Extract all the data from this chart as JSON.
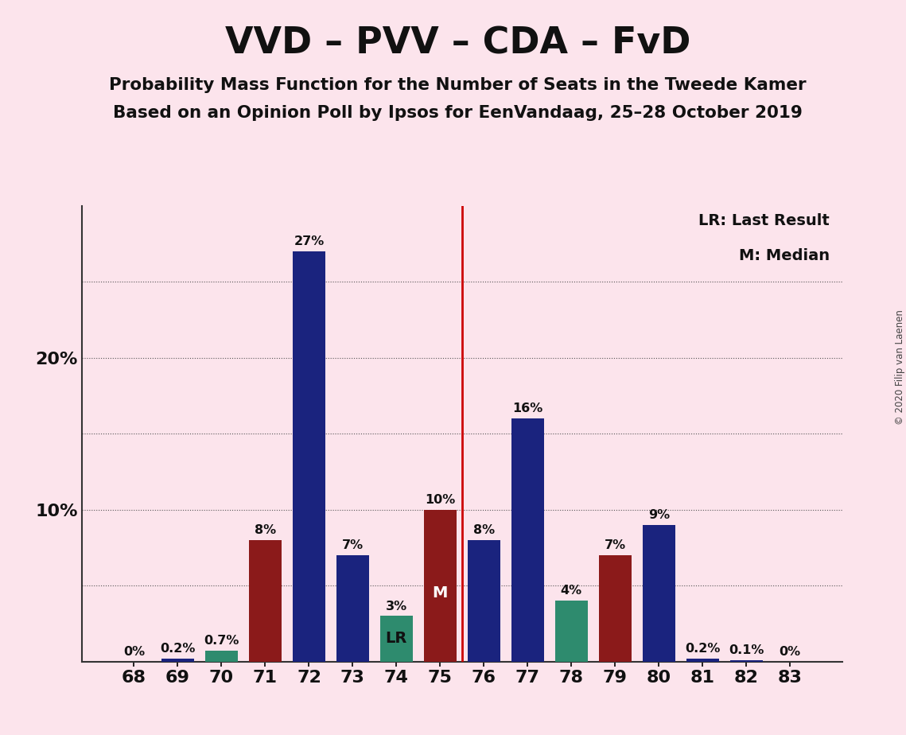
{
  "title": "VVD – PVV – CDA – FvD",
  "subtitle1": "Probability Mass Function for the Number of Seats in the Tweede Kamer",
  "subtitle2": "Based on an Opinion Poll by Ipsos for EenVandaag, 25–28 October 2019",
  "copyright": "© 2020 Filip van Laenen",
  "seats": [
    68,
    69,
    70,
    71,
    72,
    73,
    74,
    75,
    76,
    77,
    78,
    79,
    80,
    81,
    82,
    83
  ],
  "values": [
    0.0,
    0.2,
    0.7,
    8.0,
    27.0,
    7.0,
    3.0,
    10.0,
    8.0,
    16.0,
    4.0,
    7.0,
    9.0,
    0.2,
    0.1,
    0.0
  ],
  "labels": [
    "0%",
    "0.2%",
    "0.7%",
    "8%",
    "27%",
    "7%",
    "3%",
    "10%",
    "8%",
    "16%",
    "4%",
    "7%",
    "9%",
    "0.2%",
    "0.1%",
    "0%"
  ],
  "colors": [
    "#1a237e",
    "#1a237e",
    "#2e8b6e",
    "#8b1a1a",
    "#1a237e",
    "#1a237e",
    "#2e8b6e",
    "#8b1a1a",
    "#1a237e",
    "#1a237e",
    "#2e8b6e",
    "#8b1a1a",
    "#1a237e",
    "#1a237e",
    "#1a237e",
    "#1a237e"
  ],
  "lr_seat": 74,
  "median_seat": 75,
  "vline_x": 75.5,
  "background_color": "#fce4ec",
  "lr_label": "LR: Last Result",
  "m_label": "M: Median",
  "ylim_max": 30,
  "grid_lines": [
    5,
    10,
    15,
    20,
    25
  ],
  "ytick_vals": [
    10,
    20
  ],
  "ytick_labels": [
    "10%",
    "20%"
  ],
  "bar_width": 0.75
}
